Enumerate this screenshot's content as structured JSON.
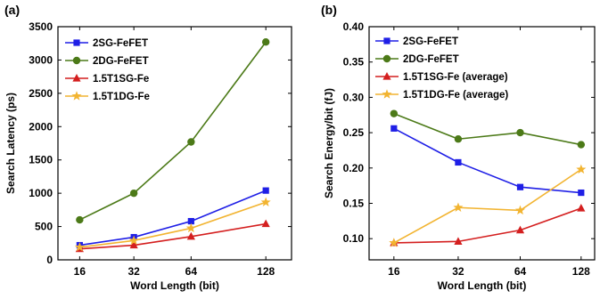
{
  "chart_data": [
    {
      "type": "line",
      "panel_label": "(a)",
      "categories": [
        "16",
        "32",
        "64",
        "128"
      ],
      "xlabel": "Word Length (bit)",
      "ylabel": "Search Latency (ps)",
      "ylim": [
        0,
        3500
      ],
      "yticks": [
        "0",
        "500",
        "1000",
        "1500",
        "2000",
        "2500",
        "3000",
        "3500"
      ],
      "ytick_values": [
        0,
        500,
        1000,
        1500,
        2000,
        2500,
        3000,
        3500
      ],
      "legend_position": "top-left",
      "grid": false,
      "series": [
        {
          "name": "2SG-FeFET",
          "values": [
            220,
            340,
            580,
            1040
          ],
          "color": "#1f1fe6",
          "marker": "square"
        },
        {
          "name": "2DG-FeFET",
          "values": [
            600,
            1000,
            1770,
            3270
          ],
          "color": "#4c7a18",
          "marker": "circle"
        },
        {
          "name": "1.5T1SG-Fe",
          "values": [
            165,
            220,
            350,
            540
          ],
          "color": "#d41f1f",
          "marker": "triangle"
        },
        {
          "name": "1.5T1DG-Fe",
          "values": [
            190,
            290,
            475,
            865
          ],
          "color": "#f2b431",
          "marker": "star"
        }
      ]
    },
    {
      "type": "line",
      "panel_label": "(b)",
      "categories": [
        "16",
        "32",
        "64",
        "128"
      ],
      "xlabel": "Word Length (bit)",
      "ylabel": "Search Energy/bit (fJ)",
      "ylim": [
        0.07,
        0.4
      ],
      "yticks": [
        "0.10",
        "0.15",
        "0.20",
        "0.25",
        "0.30",
        "0.35",
        "0.40"
      ],
      "ytick_values": [
        0.1,
        0.15,
        0.2,
        0.25,
        0.3,
        0.35,
        0.4
      ],
      "legend_position": "top-left",
      "grid": false,
      "series": [
        {
          "name": "2SG-FeFET",
          "values": [
            0.256,
            0.208,
            0.173,
            0.165
          ],
          "color": "#1f1fe6",
          "marker": "square"
        },
        {
          "name": "2DG-FeFET",
          "values": [
            0.277,
            0.241,
            0.25,
            0.233
          ],
          "color": "#4c7a18",
          "marker": "circle"
        },
        {
          "name": "1.5T1SG-Fe (average)",
          "values": [
            0.094,
            0.096,
            0.112,
            0.143
          ],
          "color": "#d41f1f",
          "marker": "triangle"
        },
        {
          "name": "1.5T1DG-Fe (average)",
          "values": [
            0.094,
            0.144,
            0.14,
            0.198
          ],
          "color": "#f2b431",
          "marker": "star"
        }
      ]
    }
  ]
}
